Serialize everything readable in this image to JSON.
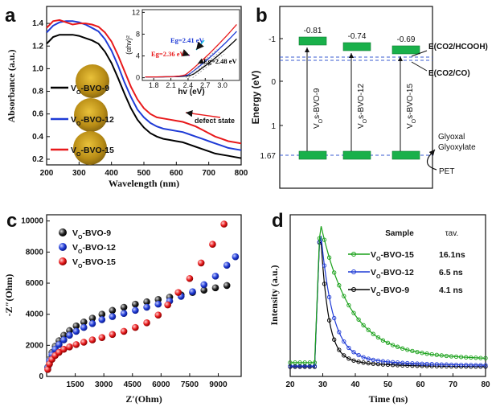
{
  "panels": {
    "a": "a",
    "b": "b",
    "c": "c",
    "d": "d"
  },
  "chart_data": [
    {
      "panel": "a",
      "type": "line",
      "xlabel": "Wavelength (nm)",
      "ylabel": "Absorbance (a.u.)",
      "xlim": [
        200,
        800
      ],
      "ylim": [
        0.15,
        1.55
      ],
      "xticks": [
        "200",
        "300",
        "400",
        "500",
        "600",
        "700",
        "800"
      ],
      "yticks": [
        "0.2",
        "0.4",
        "0.6",
        "0.8",
        "1.0",
        "1.2",
        "1.4"
      ],
      "annotation": "defect state",
      "series": [
        {
          "name": "VO-BVO-9",
          "sub": "O",
          "base": "V",
          "rest": "-BVO-9",
          "color": "#000000",
          "x": [
            200,
            220,
            240,
            260,
            280,
            300,
            320,
            340,
            360,
            380,
            400,
            420,
            440,
            460,
            480,
            500,
            520,
            540,
            560,
            580,
            600,
            620,
            640,
            660,
            680,
            700,
            720,
            740,
            760,
            780,
            800
          ],
          "y": [
            1.22,
            1.28,
            1.3,
            1.3,
            1.3,
            1.29,
            1.27,
            1.25,
            1.22,
            1.15,
            1.05,
            0.92,
            0.78,
            0.65,
            0.55,
            0.48,
            0.43,
            0.4,
            0.38,
            0.37,
            0.36,
            0.35,
            0.33,
            0.31,
            0.29,
            0.27,
            0.25,
            0.24,
            0.23,
            0.22,
            0.21
          ]
        },
        {
          "name": "VO-BVO-12",
          "sub": "O",
          "base": "V",
          "rest": "-BVO-12",
          "color": "#1f3bd6",
          "x": [
            200,
            220,
            240,
            260,
            280,
            300,
            320,
            340,
            360,
            380,
            400,
            420,
            440,
            460,
            480,
            500,
            520,
            540,
            560,
            580,
            600,
            620,
            640,
            660,
            680,
            700,
            720,
            740,
            760,
            780,
            800
          ],
          "y": [
            1.32,
            1.38,
            1.41,
            1.42,
            1.42,
            1.41,
            1.39,
            1.36,
            1.33,
            1.26,
            1.16,
            1.03,
            0.88,
            0.75,
            0.64,
            0.57,
            0.52,
            0.49,
            0.47,
            0.46,
            0.45,
            0.44,
            0.42,
            0.4,
            0.38,
            0.36,
            0.34,
            0.32,
            0.3,
            0.29,
            0.28
          ]
        },
        {
          "name": "VO-BVO-15",
          "sub": "O",
          "base": "V",
          "rest": "-BVO-15",
          "color": "#e8191b",
          "x": [
            200,
            220,
            240,
            260,
            280,
            300,
            320,
            340,
            360,
            380,
            400,
            420,
            440,
            460,
            480,
            500,
            520,
            540,
            560,
            580,
            600,
            620,
            640,
            660,
            680,
            700,
            720,
            740,
            760,
            780,
            800
          ],
          "y": [
            1.36,
            1.42,
            1.43,
            1.41,
            1.39,
            1.4,
            1.4,
            1.39,
            1.37,
            1.32,
            1.24,
            1.12,
            0.98,
            0.84,
            0.73,
            0.65,
            0.6,
            0.57,
            0.56,
            0.55,
            0.54,
            0.53,
            0.51,
            0.49,
            0.46,
            0.43,
            0.4,
            0.38,
            0.36,
            0.35,
            0.34
          ]
        }
      ],
      "inset": {
        "xlabel": "hv (eV)",
        "ylabel": "(αhv)²",
        "xlim": [
          1.6,
          3.3
        ],
        "ylim": [
          -0.5,
          12.5
        ],
        "xticks": [
          "1.8",
          "2.1",
          "2.4",
          "2.7",
          "3.0"
        ],
        "yticks": [
          "0",
          "4",
          "8",
          "12"
        ],
        "labels": [
          {
            "text": "Eg=2.41 eV",
            "color": "#1f3bd6"
          },
          {
            "text": "Eg=2.36 eV",
            "color": "#e8191b"
          },
          {
            "text": "Eg=2.48 eV",
            "color": "#000000"
          }
        ]
      }
    },
    {
      "panel": "b",
      "type": "diagram",
      "ylabel": "Energy (eV)",
      "yticks": [
        "-1",
        "0",
        "1",
        "1.67"
      ],
      "cb_values": [
        "-0.81",
        "-0.74",
        "-0.69"
      ],
      "gap_labels": [
        "VOs-BVO-9",
        "VOs-BVO-12",
        "VOs-BVO-15"
      ],
      "potentials": [
        "E(CO2/HCOOH)",
        "E(CO2/CO)"
      ],
      "products": [
        "Glyoxal",
        "Glyoxylate"
      ],
      "reactant": "PET"
    },
    {
      "panel": "c",
      "type": "scatter",
      "xlabel": "Z′(Ohm)",
      "ylabel": "-Z″(Ohm)",
      "xlim": [
        0,
        10200
      ],
      "ylim": [
        0,
        10400
      ],
      "xticks": [
        "1500",
        "3000",
        "4500",
        "6000",
        "7500",
        "9000"
      ],
      "yticks": [
        "0",
        "2000",
        "4000",
        "6000",
        "8000",
        "10000"
      ],
      "series": [
        {
          "name": "VO-BVO-9",
          "base": "V",
          "sub": "O",
          "rest": "-BVO-9",
          "color": "#000000",
          "x": [
            60,
            150,
            280,
            450,
            650,
            900,
            1200,
            1550,
            1950,
            2400,
            2900,
            3450,
            4050,
            4650,
            5250,
            5850,
            6450,
            7050,
            7650,
            8250,
            8850,
            9450
          ],
          "y": [
            600,
            1100,
            1550,
            1950,
            2300,
            2650,
            2950,
            3250,
            3500,
            3750,
            4000,
            4250,
            4450,
            4650,
            4800,
            4950,
            5100,
            5250,
            5400,
            5550,
            5700,
            5850
          ]
        },
        {
          "name": "VO-BVO-12",
          "base": "V",
          "sub": "O",
          "rest": "-BVO-12",
          "color": "#1f3bd6",
          "x": [
            60,
            150,
            280,
            450,
            650,
            900,
            1200,
            1550,
            1950,
            2400,
            2900,
            3450,
            4050,
            4650,
            5250,
            5850,
            6450,
            7050,
            7650,
            8250,
            8850,
            9450,
            9900
          ],
          "y": [
            550,
            1000,
            1400,
            1750,
            2050,
            2350,
            2650,
            2900,
            3150,
            3400,
            3650,
            3850,
            4050,
            4250,
            4450,
            4650,
            4850,
            5150,
            5450,
            5900,
            6450,
            7150,
            7700
          ]
        },
        {
          "name": "VO-BVO-15",
          "base": "V",
          "sub": "O",
          "rest": "-BVO-15",
          "color": "#e8191b",
          "x": [
            60,
            150,
            280,
            450,
            650,
            900,
            1200,
            1550,
            1950,
            2400,
            2900,
            3450,
            4050,
            4650,
            5250,
            5850,
            6350,
            6900,
            7500,
            8100,
            8700,
            9300
          ],
          "y": [
            450,
            800,
            1100,
            1350,
            1550,
            1750,
            1900,
            2050,
            2200,
            2350,
            2500,
            2700,
            2900,
            3150,
            3450,
            3950,
            4600,
            5400,
            6300,
            7300,
            8500,
            9800
          ]
        }
      ]
    },
    {
      "panel": "d",
      "type": "line",
      "xlabel": "Time (ns)",
      "ylabel": "Intensity (a.u.)",
      "xlim": [
        20,
        80
      ],
      "xticks": [
        "20",
        "30",
        "40",
        "50",
        "60",
        "70",
        "80"
      ],
      "legend_header": [
        "Sample",
        "τav."
      ],
      "series": [
        {
          "name": "VO-BVO-15",
          "base": "V",
          "sub": "O",
          "rest": "-BVO-15",
          "tau": "16.1ns",
          "color": "#1aa11a",
          "tau_ns": 16.1
        },
        {
          "name": "VO-BVO-12",
          "base": "V",
          "sub": "O",
          "rest": "-BVO-12",
          "tau": "6.5 ns",
          "color": "#1f3bd6",
          "tau_ns": 6.5
        },
        {
          "name": "VO-BVO-9",
          "base": "V",
          "sub": "O",
          "rest": "-BVO-9",
          "tau": "4.1 ns",
          "color": "#000000",
          "tau_ns": 4.1
        }
      ]
    }
  ]
}
